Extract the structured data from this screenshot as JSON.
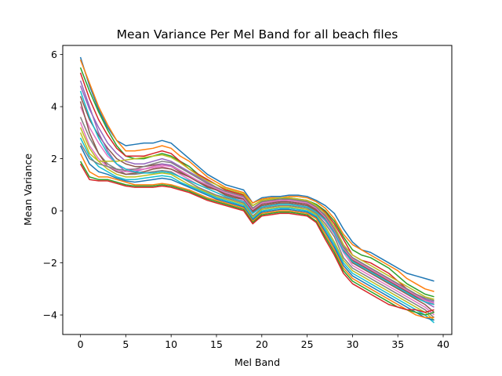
{
  "chart_data": {
    "type": "line",
    "title": "Mean Variance Per Mel Band for all beach files",
    "xlabel": "Mel Band",
    "ylabel": "Mean Variance",
    "xlim": [
      -1.95,
      40.95
    ],
    "ylim": [
      -4.75,
      6.35
    ],
    "xticks": [
      0,
      5,
      10,
      15,
      20,
      25,
      30,
      35,
      40
    ],
    "xtick_labels": [
      "0",
      "5",
      "10",
      "15",
      "20",
      "25",
      "30",
      "35",
      "40"
    ],
    "yticks": [
      -4,
      -2,
      0,
      2,
      4,
      6
    ],
    "ytick_labels": [
      "−4",
      "−2",
      "0",
      "2",
      "4",
      "6"
    ],
    "grid": false,
    "legend": "none",
    "x": [
      0,
      1,
      2,
      3,
      4,
      5,
      6,
      7,
      8,
      9,
      10,
      11,
      12,
      13,
      14,
      15,
      16,
      17,
      18,
      19,
      20,
      21,
      22,
      23,
      24,
      25,
      26,
      27,
      28,
      29,
      30,
      31,
      32,
      33,
      34,
      35,
      36,
      37,
      38,
      39
    ],
    "colors": [
      "#1f77b4",
      "#ff7f0e",
      "#2ca02c",
      "#d62728",
      "#9467bd",
      "#8c564b",
      "#e377c2",
      "#7f7f7f",
      "#bcbd22",
      "#17becf"
    ],
    "series": [
      {
        "values": [
          5.9,
          4.8,
          3.9,
          3.2,
          2.7,
          2.5,
          2.55,
          2.6,
          2.6,
          2.7,
          2.6,
          2.3,
          2.0,
          1.7,
          1.4,
          1.2,
          1.0,
          0.9,
          0.8,
          0.3,
          0.5,
          0.55,
          0.55,
          0.6,
          0.6,
          0.55,
          0.4,
          0.2,
          -0.1,
          -0.7,
          -1.2,
          -1.5,
          -1.6,
          -1.8,
          -2.0,
          -2.2,
          -2.4,
          -2.5,
          -2.6,
          -2.7
        ]
      },
      {
        "values": [
          5.8,
          4.9,
          4.0,
          3.3,
          2.7,
          2.3,
          2.3,
          2.35,
          2.4,
          2.5,
          2.4,
          2.1,
          1.9,
          1.6,
          1.3,
          1.1,
          0.9,
          0.8,
          0.7,
          0.3,
          0.45,
          0.5,
          0.5,
          0.55,
          0.55,
          0.5,
          0.35,
          0.1,
          -0.3,
          -0.9,
          -1.3,
          -1.5,
          -1.7,
          -1.9,
          -2.1,
          -2.3,
          -2.6,
          -2.8,
          -3.0,
          -3.1
        ]
      },
      {
        "values": [
          5.5,
          4.6,
          3.8,
          3.1,
          2.5,
          2.1,
          2.0,
          2.0,
          2.1,
          2.2,
          2.1,
          1.9,
          1.7,
          1.4,
          1.2,
          1.0,
          0.8,
          0.7,
          0.6,
          0.2,
          0.4,
          0.45,
          0.45,
          0.5,
          0.45,
          0.4,
          0.25,
          0.0,
          -0.4,
          -1.0,
          -1.5,
          -1.7,
          -1.8,
          -2.0,
          -2.2,
          -2.5,
          -2.8,
          -3.0,
          -3.2,
          -3.3
        ]
      },
      {
        "values": [
          5.3,
          4.3,
          3.5,
          2.9,
          2.4,
          2.1,
          2.1,
          2.1,
          2.2,
          2.3,
          2.2,
          1.9,
          1.6,
          1.4,
          1.2,
          1.0,
          0.8,
          0.7,
          0.6,
          0.1,
          0.35,
          0.4,
          0.4,
          0.45,
          0.4,
          0.35,
          0.2,
          -0.05,
          -0.5,
          -1.1,
          -1.7,
          -1.9,
          -2.0,
          -2.2,
          -2.4,
          -2.7,
          -3.0,
          -3.2,
          -3.4,
          -3.6
        ]
      },
      {
        "values": [
          4.8,
          3.9,
          3.2,
          2.6,
          2.2,
          1.9,
          1.8,
          1.8,
          1.9,
          2.0,
          1.9,
          1.7,
          1.5,
          1.3,
          1.1,
          0.9,
          0.7,
          0.6,
          0.5,
          0.0,
          0.3,
          0.35,
          0.35,
          0.4,
          0.35,
          0.3,
          0.1,
          -0.15,
          -0.6,
          -1.3,
          -1.9,
          -2.1,
          -2.2,
          -2.4,
          -2.6,
          -2.9,
          -3.1,
          -3.3,
          -3.5,
          -3.7
        ]
      },
      {
        "values": [
          4.4,
          3.5,
          2.9,
          2.4,
          2.0,
          1.8,
          1.7,
          1.7,
          1.75,
          1.8,
          1.7,
          1.5,
          1.3,
          1.1,
          0.9,
          0.8,
          0.6,
          0.5,
          0.45,
          -0.05,
          0.2,
          0.25,
          0.3,
          0.3,
          0.25,
          0.2,
          0.0,
          -0.3,
          -0.8,
          -1.5,
          -2.0,
          -2.2,
          -2.4,
          -2.6,
          -2.8,
          -3.0,
          -3.2,
          -3.4,
          -3.6,
          -3.9
        ]
      },
      {
        "values": [
          4.0,
          3.2,
          2.6,
          2.1,
          1.8,
          1.6,
          1.6,
          1.6,
          1.65,
          1.7,
          1.6,
          1.4,
          1.2,
          1.0,
          0.85,
          0.7,
          0.55,
          0.45,
          0.4,
          -0.1,
          0.15,
          0.2,
          0.25,
          0.25,
          0.2,
          0.15,
          -0.05,
          -0.4,
          -0.9,
          -1.6,
          -2.1,
          -2.3,
          -2.5,
          -2.7,
          -2.9,
          -3.1,
          -3.3,
          -3.5,
          -3.7,
          -4.0
        ]
      },
      {
        "values": [
          3.6,
          2.8,
          2.2,
          1.8,
          1.6,
          1.4,
          1.4,
          1.45,
          1.5,
          1.55,
          1.5,
          1.3,
          1.1,
          0.9,
          0.75,
          0.6,
          0.5,
          0.4,
          0.3,
          -0.2,
          0.1,
          0.15,
          0.2,
          0.2,
          0.15,
          0.1,
          -0.1,
          -0.5,
          -1.0,
          -1.8,
          -2.2,
          -2.4,
          -2.6,
          -2.8,
          -3.0,
          -3.2,
          -3.4,
          -3.6,
          -3.8,
          -4.1
        ]
      },
      {
        "values": [
          3.2,
          2.4,
          1.9,
          1.6,
          1.4,
          1.3,
          1.3,
          1.35,
          1.4,
          1.45,
          1.4,
          1.2,
          1.0,
          0.85,
          0.7,
          0.55,
          0.45,
          0.35,
          0.25,
          -0.25,
          0.05,
          0.1,
          0.15,
          0.15,
          0.1,
          0.05,
          -0.15,
          -0.6,
          -1.2,
          -1.9,
          -2.3,
          -2.5,
          -2.7,
          -2.9,
          -3.1,
          -3.3,
          -3.5,
          -3.7,
          -3.9,
          -4.2
        ]
      },
      {
        "values": [
          2.8,
          2.1,
          1.7,
          1.5,
          1.3,
          1.2,
          1.2,
          1.25,
          1.3,
          1.35,
          1.3,
          1.1,
          0.95,
          0.8,
          0.65,
          0.5,
          0.4,
          0.3,
          0.2,
          -0.3,
          0.0,
          0.05,
          0.1,
          0.1,
          0.05,
          0.0,
          -0.2,
          -0.7,
          -1.3,
          -2.0,
          -2.4,
          -2.6,
          -2.8,
          -3.0,
          -3.2,
          -3.4,
          -3.6,
          -3.8,
          -4.0,
          -4.3
        ]
      },
      {
        "values": [
          2.5,
          1.8,
          1.5,
          1.4,
          1.25,
          1.15,
          1.1,
          1.15,
          1.2,
          1.25,
          1.2,
          1.05,
          0.9,
          0.75,
          0.6,
          0.45,
          0.35,
          0.25,
          0.15,
          -0.35,
          -0.05,
          0.0,
          0.05,
          0.05,
          0.0,
          -0.05,
          -0.25,
          -0.8,
          -1.4,
          -2.1,
          -2.5,
          -2.7,
          -2.9,
          -3.1,
          -3.3,
          -3.5,
          -3.7,
          -3.9,
          -4.1,
          -4.2
        ]
      },
      {
        "values": [
          2.2,
          1.5,
          1.3,
          1.3,
          1.2,
          1.1,
          1.0,
          1.0,
          1.0,
          1.05,
          1.0,
          0.9,
          0.8,
          0.65,
          0.5,
          0.4,
          0.3,
          0.2,
          0.1,
          -0.4,
          -0.1,
          -0.05,
          0.0,
          0.0,
          -0.05,
          -0.1,
          -0.3,
          -0.9,
          -1.5,
          -2.2,
          -2.6,
          -2.8,
          -3.0,
          -3.2,
          -3.4,
          -3.6,
          -3.8,
          -4.0,
          -4.1,
          -4.1
        ]
      },
      {
        "values": [
          1.9,
          1.3,
          1.2,
          1.2,
          1.1,
          1.0,
          0.95,
          0.95,
          0.95,
          1.0,
          0.95,
          0.85,
          0.75,
          0.6,
          0.45,
          0.35,
          0.25,
          0.15,
          0.05,
          -0.45,
          -0.15,
          -0.1,
          -0.05,
          -0.05,
          -0.1,
          -0.15,
          -0.4,
          -1.0,
          -1.6,
          -2.3,
          -2.7,
          -2.9,
          -3.1,
          -3.3,
          -3.5,
          -3.7,
          -3.8,
          -3.9,
          -4.0,
          -3.9
        ]
      },
      {
        "values": [
          1.8,
          1.2,
          1.15,
          1.15,
          1.05,
          0.95,
          0.9,
          0.9,
          0.9,
          0.95,
          0.9,
          0.8,
          0.7,
          0.55,
          0.4,
          0.3,
          0.2,
          0.1,
          0.0,
          -0.5,
          -0.2,
          -0.15,
          -0.1,
          -0.1,
          -0.15,
          -0.2,
          -0.45,
          -1.1,
          -1.7,
          -2.4,
          -2.8,
          -3.0,
          -3.2,
          -3.4,
          -3.6,
          -3.7,
          -3.8,
          -3.8,
          -3.9,
          -3.8
        ]
      },
      {
        "values": [
          5.0,
          4.0,
          3.0,
          2.3,
          1.8,
          1.5,
          1.5,
          1.6,
          1.7,
          1.8,
          1.75,
          1.55,
          1.35,
          1.15,
          1.0,
          0.85,
          0.7,
          0.6,
          0.5,
          0.05,
          0.3,
          0.35,
          0.4,
          0.4,
          0.35,
          0.3,
          0.15,
          -0.2,
          -0.7,
          -1.4,
          -1.8,
          -2.0,
          -2.2,
          -2.4,
          -2.6,
          -2.8,
          -3.0,
          -3.2,
          -3.4,
          -3.5
        ]
      },
      {
        "values": [
          4.2,
          3.0,
          2.2,
          1.7,
          1.5,
          1.4,
          1.45,
          1.5,
          1.6,
          1.65,
          1.6,
          1.45,
          1.3,
          1.1,
          0.95,
          0.8,
          0.65,
          0.55,
          0.45,
          0.0,
          0.25,
          0.3,
          0.35,
          0.35,
          0.3,
          0.25,
          0.05,
          -0.3,
          -0.8,
          -1.5,
          -1.9,
          -2.1,
          -2.3,
          -2.5,
          -2.7,
          -2.9,
          -3.1,
          -3.3,
          -3.5,
          -3.6
        ]
      },
      {
        "values": [
          3.4,
          2.5,
          2.0,
          1.7,
          1.55,
          1.5,
          1.55,
          1.6,
          1.7,
          1.75,
          1.7,
          1.55,
          1.35,
          1.15,
          1.0,
          0.85,
          0.7,
          0.6,
          0.5,
          0.05,
          0.3,
          0.35,
          0.4,
          0.4,
          0.35,
          0.3,
          0.1,
          -0.25,
          -0.75,
          -1.45,
          -1.85,
          -2.05,
          -2.25,
          -2.45,
          -2.65,
          -2.85,
          -3.05,
          -3.25,
          -3.45,
          -3.55
        ]
      },
      {
        "values": [
          2.6,
          2.0,
          1.8,
          1.7,
          1.6,
          1.55,
          1.6,
          1.7,
          1.8,
          1.9,
          1.85,
          1.65,
          1.45,
          1.25,
          1.05,
          0.9,
          0.75,
          0.65,
          0.55,
          0.1,
          0.35,
          0.4,
          0.45,
          0.45,
          0.4,
          0.35,
          0.15,
          -0.2,
          -0.7,
          -1.4,
          -1.8,
          -2.0,
          -2.2,
          -2.4,
          -2.6,
          -2.8,
          -3.0,
          -3.2,
          -3.35,
          -3.45
        ]
      },
      {
        "values": [
          3.0,
          2.2,
          1.9,
          1.9,
          1.9,
          1.95,
          2.0,
          2.05,
          2.1,
          2.15,
          2.05,
          1.85,
          1.6,
          1.35,
          1.15,
          1.0,
          0.85,
          0.75,
          0.65,
          0.2,
          0.4,
          0.45,
          0.5,
          0.5,
          0.45,
          0.4,
          0.2,
          -0.1,
          -0.6,
          -1.3,
          -1.7,
          -1.9,
          -2.1,
          -2.3,
          -2.5,
          -2.7,
          -2.9,
          -3.1,
          -3.3,
          -3.4
        ]
      },
      {
        "values": [
          4.6,
          3.6,
          2.8,
          2.2,
          1.8,
          1.6,
          1.5,
          1.45,
          1.45,
          1.5,
          1.45,
          1.3,
          1.15,
          1.0,
          0.85,
          0.7,
          0.55,
          0.45,
          0.35,
          -0.1,
          0.15,
          0.2,
          0.25,
          0.25,
          0.2,
          0.15,
          -0.05,
          -0.35,
          -0.85,
          -1.55,
          -1.95,
          -2.15,
          -2.35,
          -2.55,
          -2.75,
          -2.95,
          -3.15,
          -3.35,
          -3.5,
          -3.6
        ]
      }
    ]
  }
}
